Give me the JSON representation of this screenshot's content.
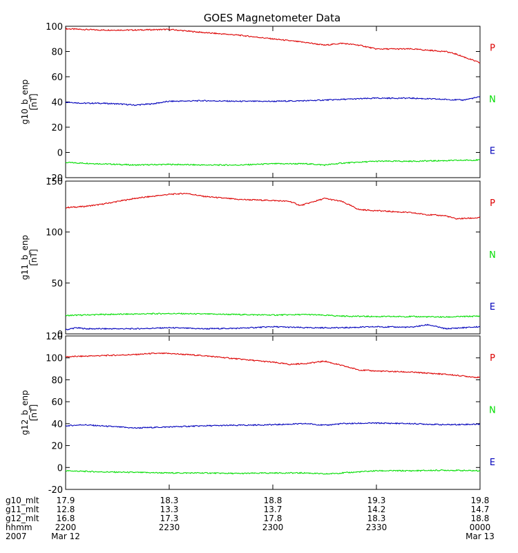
{
  "title": "GOES Magnetometer Data",
  "chart_data": [
    {
      "type": "line",
      "ylabel": "g10_b_enp",
      "yunit": "[nT]",
      "ylim": [
        -20,
        100
      ],
      "yticks": [
        -20,
        0,
        20,
        40,
        60,
        80,
        100
      ],
      "xlim": [
        0,
        120
      ],
      "grid": false,
      "legend": "right",
      "series": [
        {
          "name": "P",
          "color": "#dd0000",
          "x": [
            0,
            5,
            10,
            20,
            30,
            40,
            50,
            60,
            70,
            75,
            80,
            85,
            90,
            100,
            105,
            110,
            113,
            116,
            120
          ],
          "y": [
            98,
            97.5,
            97,
            97,
            97.5,
            95,
            93,
            90,
            87,
            85,
            86.5,
            85,
            82,
            82,
            81,
            80,
            78,
            75,
            71
          ]
        },
        {
          "name": "N",
          "color": "#00dd00",
          "x": [
            0,
            10,
            20,
            30,
            40,
            50,
            60,
            70,
            75,
            80,
            90,
            100,
            110,
            120
          ],
          "y": [
            -8,
            -9,
            -10,
            -9.5,
            -10,
            -10,
            -9,
            -9,
            -10,
            -8.5,
            -7,
            -7,
            -6.5,
            -6
          ]
        },
        {
          "name": "E",
          "color": "#0000bb",
          "x": [
            0,
            5,
            10,
            15,
            20,
            25,
            30,
            40,
            50,
            60,
            70,
            80,
            90,
            100,
            110,
            115,
            120
          ],
          "y": [
            40,
            39,
            39,
            38.5,
            37.5,
            38.5,
            40.5,
            41,
            40.5,
            40.5,
            41,
            42,
            43,
            43,
            42,
            41.5,
            44
          ]
        }
      ]
    },
    {
      "type": "line",
      "ylabel": "g11_b_enp",
      "yunit": "[nT]",
      "ylim": [
        0,
        150
      ],
      "yticks": [
        0,
        50,
        100,
        150
      ],
      "xlim": [
        0,
        120
      ],
      "grid": false,
      "legend": "right",
      "series": [
        {
          "name": "P",
          "color": "#dd0000",
          "x": [
            0,
            5,
            10,
            20,
            25,
            30,
            35,
            40,
            50,
            60,
            65,
            68,
            72,
            75,
            80,
            85,
            90,
            100,
            105,
            110,
            113,
            120
          ],
          "y": [
            124,
            125,
            127,
            133,
            135,
            137,
            138,
            135,
            132,
            131,
            130,
            126,
            130,
            133,
            130,
            122,
            121,
            119,
            117,
            116,
            113,
            114
          ]
        },
        {
          "name": "N",
          "color": "#00dd00",
          "x": [
            0,
            10,
            20,
            30,
            40,
            50,
            60,
            70,
            80,
            90,
            100,
            110,
            120
          ],
          "y": [
            18,
            19,
            19.5,
            20,
            19.5,
            19,
            18.5,
            19,
            17.5,
            17,
            17,
            16.5,
            17.5
          ]
        },
        {
          "name": "E",
          "color": "#0000bb",
          "x": [
            0,
            3,
            6,
            10,
            20,
            30,
            40,
            50,
            60,
            70,
            80,
            90,
            100,
            105,
            110,
            115,
            120
          ],
          "y": [
            4,
            6,
            5,
            5,
            5,
            6,
            5,
            5.5,
            7,
            6,
            6,
            7,
            6.5,
            9,
            5,
            6,
            7
          ]
        }
      ]
    },
    {
      "type": "line",
      "ylabel": "g12_b_enp",
      "yunit": "[nT]",
      "ylim": [
        -20,
        120
      ],
      "yticks": [
        -20,
        0,
        20,
        40,
        60,
        80,
        100,
        120
      ],
      "xlim": [
        0,
        120
      ],
      "grid": false,
      "legend": "right",
      "series": [
        {
          "name": "P",
          "color": "#dd0000",
          "x": [
            0,
            10,
            20,
            25,
            30,
            40,
            50,
            60,
            65,
            70,
            75,
            80,
            85,
            90,
            100,
            110,
            120
          ],
          "y": [
            101,
            102,
            103,
            104,
            104,
            102,
            99,
            96,
            94,
            95,
            97,
            93,
            89,
            88,
            87,
            85,
            82
          ]
        },
        {
          "name": "N",
          "color": "#00dd00",
          "x": [
            0,
            5,
            10,
            20,
            30,
            40,
            50,
            60,
            70,
            75,
            80,
            90,
            100,
            110,
            120
          ],
          "y": [
            -3,
            -3.5,
            -4,
            -4.5,
            -5,
            -5,
            -5.5,
            -5,
            -5,
            -6,
            -5,
            -3,
            -3,
            -2.5,
            -3
          ]
        },
        {
          "name": "E",
          "color": "#0000bb",
          "x": [
            0,
            5,
            10,
            15,
            20,
            25,
            30,
            40,
            50,
            60,
            70,
            75,
            80,
            90,
            100,
            110,
            120
          ],
          "y": [
            38,
            39,
            38,
            37,
            36,
            36.5,
            37,
            38,
            38.5,
            39,
            40,
            38.5,
            40,
            40.5,
            40,
            39,
            39.5
          ]
        }
      ]
    }
  ],
  "xaxis": {
    "ticks": [
      0,
      30,
      60,
      90,
      120
    ],
    "row_labels": [
      "g10_mlt",
      "g11_mlt",
      "g12_mlt",
      "hhmm",
      "2007"
    ],
    "columns": [
      [
        "17.9",
        "12.8",
        "16.8",
        "2200",
        "Mar 12"
      ],
      [
        "18.3",
        "13.3",
        "17.3",
        "2230",
        ""
      ],
      [
        "18.8",
        "13.7",
        "17.8",
        "2300",
        ""
      ],
      [
        "19.3",
        "14.2",
        "18.3",
        "2330",
        ""
      ],
      [
        "19.8",
        "14.7",
        "18.8",
        "0000",
        "Mar 13"
      ]
    ]
  }
}
